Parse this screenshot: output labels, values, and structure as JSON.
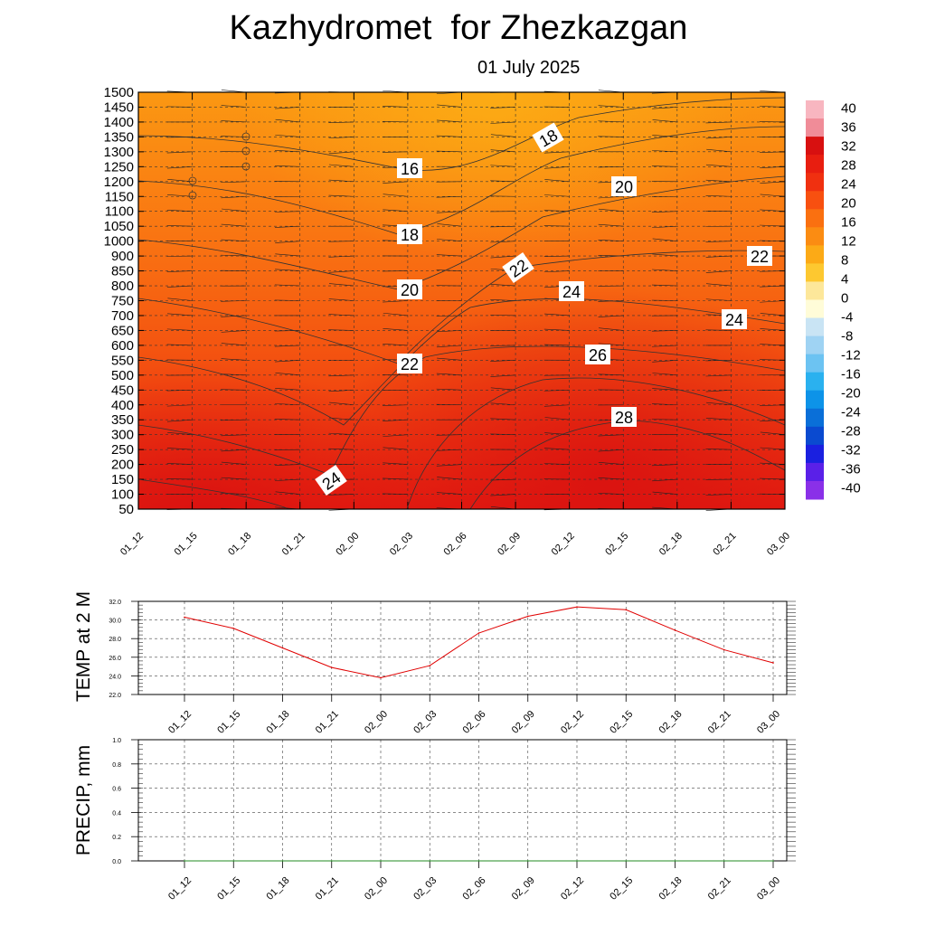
{
  "title": "Kazhydromet  for Zhezkazgan",
  "subtitle": "01 July 2025",
  "chart_data": [
    {
      "type": "heatmap",
      "name": "cross-section",
      "y_ticks": [
        "50",
        "100",
        "150",
        "200",
        "250",
        "300",
        "350",
        "400",
        "450",
        "500",
        "550",
        "600",
        "650",
        "700",
        "750",
        "800",
        "850",
        "900",
        "1000",
        "1050",
        "1100",
        "1150",
        "1200",
        "1250",
        "1300",
        "1350",
        "1400",
        "1450",
        "1500"
      ],
      "x_ticks": [
        "01_12",
        "01_15",
        "01_18",
        "01_21",
        "02_00",
        "02_03",
        "02_06",
        "02_09",
        "02_12",
        "02_15",
        "02_18",
        "02_21",
        "03_00"
      ],
      "colorbar": {
        "ticks": [
          "40",
          "36",
          "32",
          "28",
          "24",
          "20",
          "16",
          "12",
          "8",
          "4",
          "0",
          "-4",
          "-8",
          "-12",
          "-16",
          "-20",
          "-24",
          "-28",
          "-32",
          "-36",
          "-40"
        ],
        "colors": [
          "#f8b6c0",
          "#f08c98",
          "#d81010",
          "#e81e10",
          "#f03010",
          "#f85010",
          "#fa7010",
          "#fb8c12",
          "#fcaa16",
          "#fdc830",
          "#fde79a",
          "#fffcd8",
          "#c9e4f4",
          "#9fd3f3",
          "#6cc3f2",
          "#2ab1ef",
          "#0d93e8",
          "#0a6fd8",
          "#0a4ad0",
          "#1a20e0",
          "#5a20e8",
          "#8a30e8"
        ]
      },
      "contour_labels": [
        "16",
        "18",
        "20",
        "22",
        "24",
        "18",
        "20",
        "22",
        "24",
        "26",
        "28",
        "22",
        "24",
        "24"
      ]
    },
    {
      "type": "line",
      "ylabel": "TEMP at 2 M",
      "y_ticks": [
        "32.0",
        "30.0",
        "28.0",
        "26.0",
        "24.0",
        "22.0"
      ],
      "ylim": [
        22,
        32
      ],
      "x_ticks": [
        "01_12",
        "01_15",
        "01_18",
        "01_21",
        "02_00",
        "02_03",
        "02_06",
        "02_09",
        "02_12",
        "02_15",
        "02_18",
        "02_21",
        "03_00"
      ],
      "values": [
        30.3,
        29.1,
        27.0,
        24.9,
        23.8,
        25.1,
        28.6,
        30.4,
        31.4,
        31.1,
        28.9,
        26.8,
        25.4
      ],
      "color": "#e00000"
    },
    {
      "type": "line",
      "ylabel": "PRECIP, mm",
      "y_ticks": [
        "1.0",
        "0.8",
        "0.6",
        "0.4",
        "0.2",
        "0.0"
      ],
      "ylim": [
        0,
        1
      ],
      "x_ticks": [
        "01_12",
        "01_15",
        "01_18",
        "01_21",
        "02_00",
        "02_03",
        "02_06",
        "02_09",
        "02_12",
        "02_15",
        "02_18",
        "02_21",
        "03_00"
      ],
      "values": [
        0,
        0,
        0,
        0,
        0,
        0,
        0,
        0,
        0,
        0,
        0,
        0,
        0
      ],
      "color": "#228b22"
    }
  ]
}
